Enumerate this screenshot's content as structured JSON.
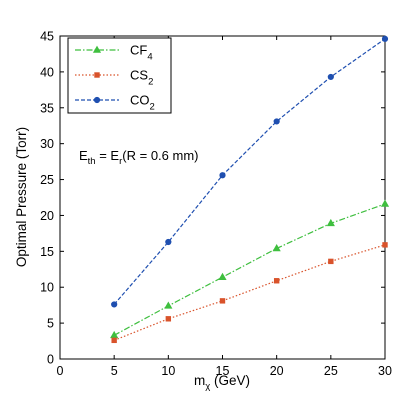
{
  "chart_data": {
    "type": "line",
    "xlabel_main": "m",
    "xlabel_sub": "χ",
    "xlabel_unit": " (GeV)",
    "ylabel": "Optimal Pressure (Torr)",
    "xlim": [
      0,
      30
    ],
    "ylim": [
      0,
      45
    ],
    "xticks": [
      0,
      5,
      10,
      15,
      20,
      25,
      30
    ],
    "yticks": [
      0,
      5,
      10,
      15,
      20,
      25,
      30,
      35,
      40,
      45
    ],
    "grid": false,
    "legend_position": "top-left",
    "x": [
      5,
      10,
      15,
      20,
      25,
      30
    ],
    "series": [
      {
        "name": "CF4",
        "label_main": "CF",
        "label_sub": "4",
        "color": "#3fbf3f",
        "marker": "triangle",
        "dash": "dash-dot",
        "values": [
          3.3,
          7.4,
          11.4,
          15.4,
          18.9,
          21.6
        ]
      },
      {
        "name": "CS2",
        "label_main": "CS",
        "label_sub": "2",
        "color": "#d9532b",
        "marker": "square",
        "dash": "dotted",
        "values": [
          2.6,
          5.6,
          8.1,
          10.9,
          13.6,
          15.9
        ]
      },
      {
        "name": "CO2",
        "label_main": "CO",
        "label_sub": "2",
        "color": "#1f4fb0",
        "marker": "circle",
        "dash": "dashed",
        "values": [
          7.6,
          16.3,
          25.6,
          33.1,
          39.3,
          44.6
        ]
      }
    ],
    "annotation": {
      "lhs_main": "E",
      "lhs_sub": "th",
      "mid": " = E",
      "rhs_sub": "r",
      "rest": "(R = 0.6 mm)"
    }
  }
}
